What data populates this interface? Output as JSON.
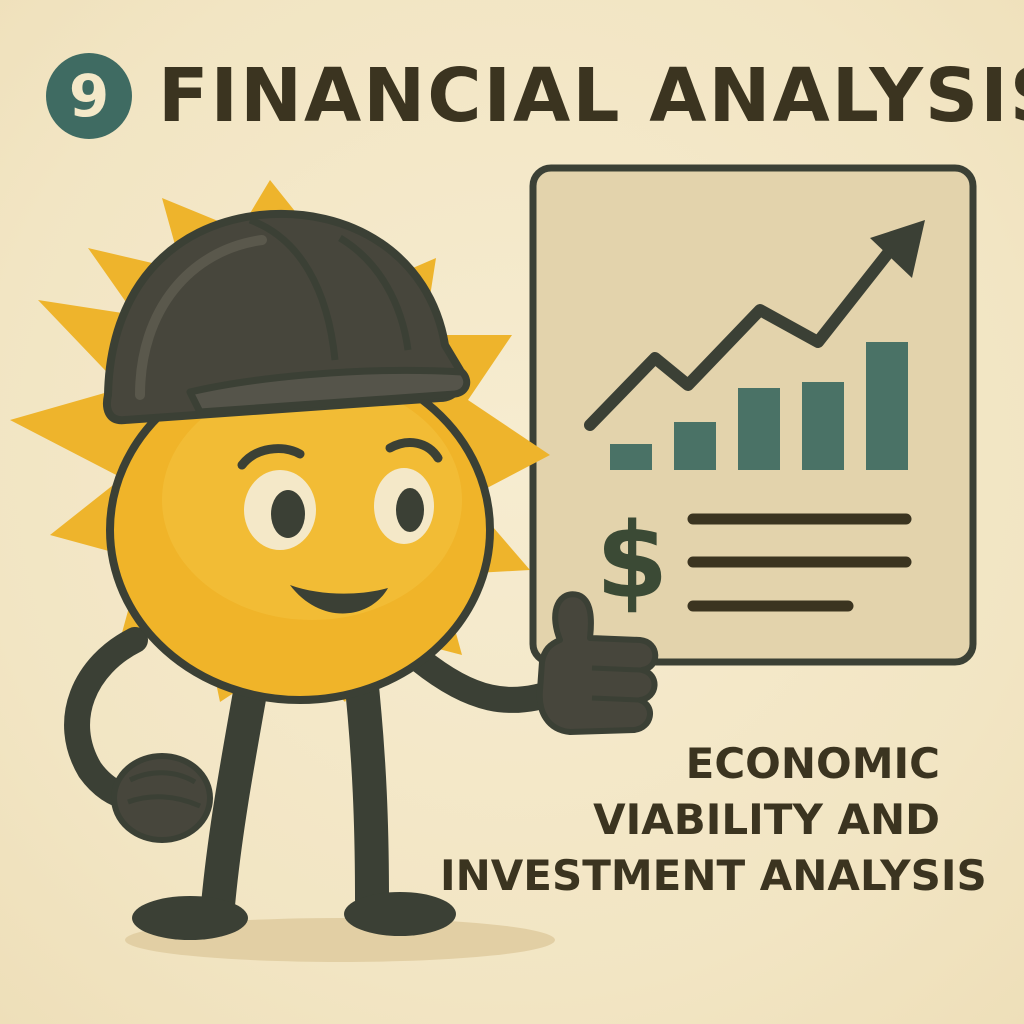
{
  "header": {
    "step_number": "9",
    "title": "FINANCIAL ANALYSIS"
  },
  "chart_icon": {
    "currency_symbol": "$"
  },
  "caption": {
    "lines": [
      "ECONOMIC",
      "VIABILITY AND",
      "INVESTMENT ANALYSIS"
    ]
  },
  "colors": {
    "background": "#f4e8c8",
    "sun": "#f0b429",
    "dark": "#3b4035",
    "teal": "#4a7266",
    "panel": "#e3d3ac"
  }
}
